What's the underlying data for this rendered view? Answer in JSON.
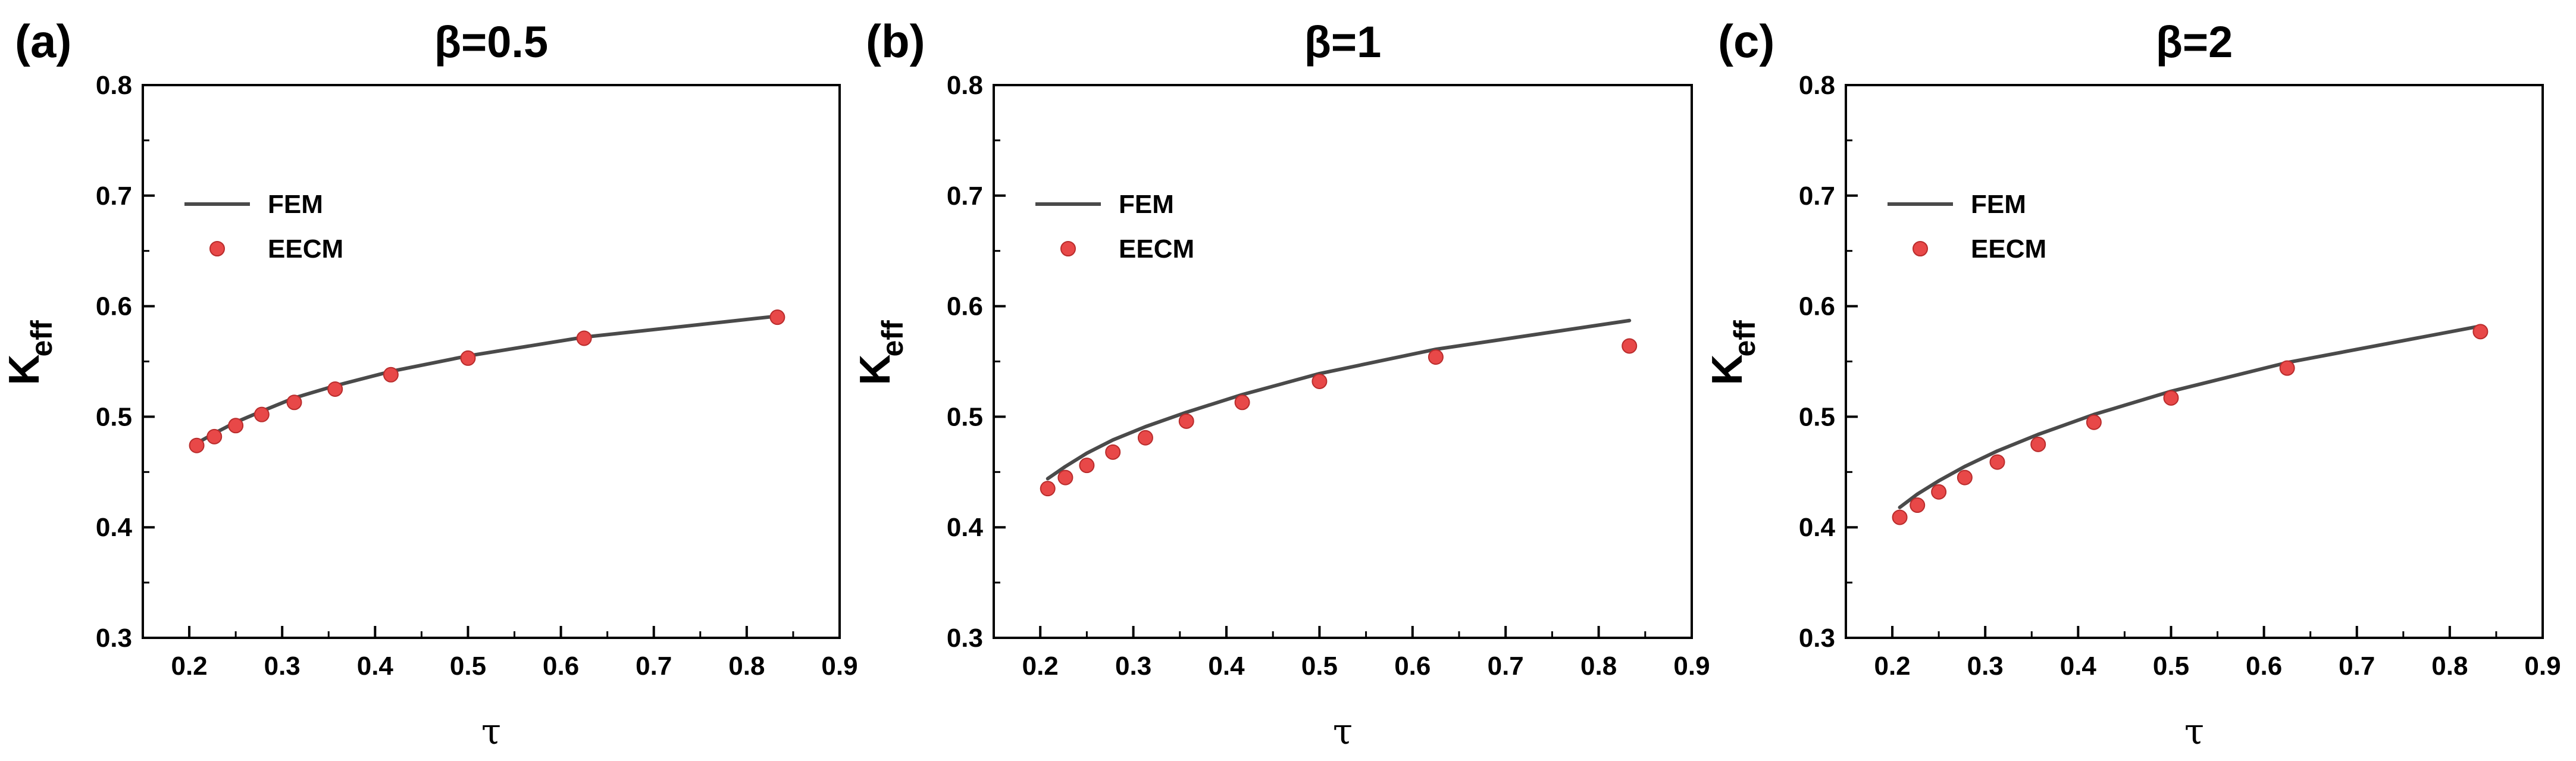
{
  "chart_data": [
    {
      "type": "line",
      "panel_label": "(a)",
      "title": "β=0.5",
      "xlabel": "τ",
      "ylabel": "K",
      "ylabel_sub": "eff",
      "xlim": [
        0.15,
        0.9
      ],
      "ylim": [
        0.3,
        0.8
      ],
      "xticks": [
        0.2,
        0.3,
        0.4,
        0.5,
        0.6,
        0.7,
        0.8,
        0.9
      ],
      "yticks": [
        0.3,
        0.4,
        0.5,
        0.6,
        0.7,
        0.8
      ],
      "grid": false,
      "legend_position": "upper-left",
      "series": [
        {
          "name": "FEM",
          "kind": "line",
          "color": "#4a4a4a",
          "x": [
            0.208,
            0.227,
            0.25,
            0.278,
            0.313,
            0.357,
            0.417,
            0.5,
            0.625,
            0.833
          ],
          "y": [
            0.476,
            0.485,
            0.495,
            0.505,
            0.517,
            0.528,
            0.541,
            0.555,
            0.572,
            0.591
          ]
        },
        {
          "name": "EECM",
          "kind": "scatter",
          "color": "#e84848",
          "x": [
            0.208,
            0.227,
            0.25,
            0.278,
            0.313,
            0.357,
            0.417,
            0.5,
            0.625,
            0.833
          ],
          "y": [
            0.474,
            0.482,
            0.492,
            0.502,
            0.513,
            0.525,
            0.538,
            0.553,
            0.571,
            0.59
          ]
        }
      ]
    },
    {
      "type": "line",
      "panel_label": "(b)",
      "title": "β=1",
      "xlabel": "τ",
      "ylabel": "K",
      "ylabel_sub": "eff",
      "xlim": [
        0.15,
        0.9
      ],
      "ylim": [
        0.3,
        0.8
      ],
      "xticks": [
        0.2,
        0.3,
        0.4,
        0.5,
        0.6,
        0.7,
        0.8,
        0.9
      ],
      "yticks": [
        0.3,
        0.4,
        0.5,
        0.6,
        0.7,
        0.8
      ],
      "grid": false,
      "legend_position": "upper-left",
      "series": [
        {
          "name": "FEM",
          "kind": "line",
          "color": "#4a4a4a",
          "x": [
            0.208,
            0.227,
            0.25,
            0.278,
            0.313,
            0.357,
            0.417,
            0.5,
            0.625,
            0.833
          ],
          "y": [
            0.444,
            0.455,
            0.467,
            0.479,
            0.491,
            0.504,
            0.52,
            0.539,
            0.561,
            0.587
          ]
        },
        {
          "name": "EECM",
          "kind": "scatter",
          "color": "#e84848",
          "x": [
            0.208,
            0.227,
            0.25,
            0.278,
            0.313,
            0.357,
            0.417,
            0.5,
            0.625,
            0.833
          ],
          "y": [
            0.435,
            0.445,
            0.456,
            0.468,
            0.481,
            0.496,
            0.513,
            0.532,
            0.554,
            0.564
          ]
        }
      ]
    },
    {
      "type": "line",
      "panel_label": "(c)",
      "title": "β=2",
      "xlabel": "τ",
      "ylabel": "K",
      "ylabel_sub": "eff",
      "xlim": [
        0.15,
        0.9
      ],
      "ylim": [
        0.3,
        0.8
      ],
      "xticks": [
        0.2,
        0.3,
        0.4,
        0.5,
        0.6,
        0.7,
        0.8,
        0.9
      ],
      "yticks": [
        0.3,
        0.4,
        0.5,
        0.6,
        0.7,
        0.8
      ],
      "grid": false,
      "legend_position": "upper-left",
      "series": [
        {
          "name": "FEM",
          "kind": "line",
          "color": "#4a4a4a",
          "x": [
            0.208,
            0.227,
            0.25,
            0.278,
            0.313,
            0.357,
            0.417,
            0.5,
            0.625,
            0.833
          ],
          "y": [
            0.418,
            0.43,
            0.442,
            0.455,
            0.469,
            0.484,
            0.502,
            0.523,
            0.549,
            0.582
          ]
        },
        {
          "name": "EECM",
          "kind": "scatter",
          "color": "#e84848",
          "x": [
            0.208,
            0.227,
            0.25,
            0.278,
            0.313,
            0.357,
            0.417,
            0.5,
            0.625,
            0.833
          ],
          "y": [
            0.409,
            0.42,
            0.432,
            0.445,
            0.459,
            0.475,
            0.495,
            0.517,
            0.544,
            0.577
          ]
        }
      ]
    }
  ]
}
